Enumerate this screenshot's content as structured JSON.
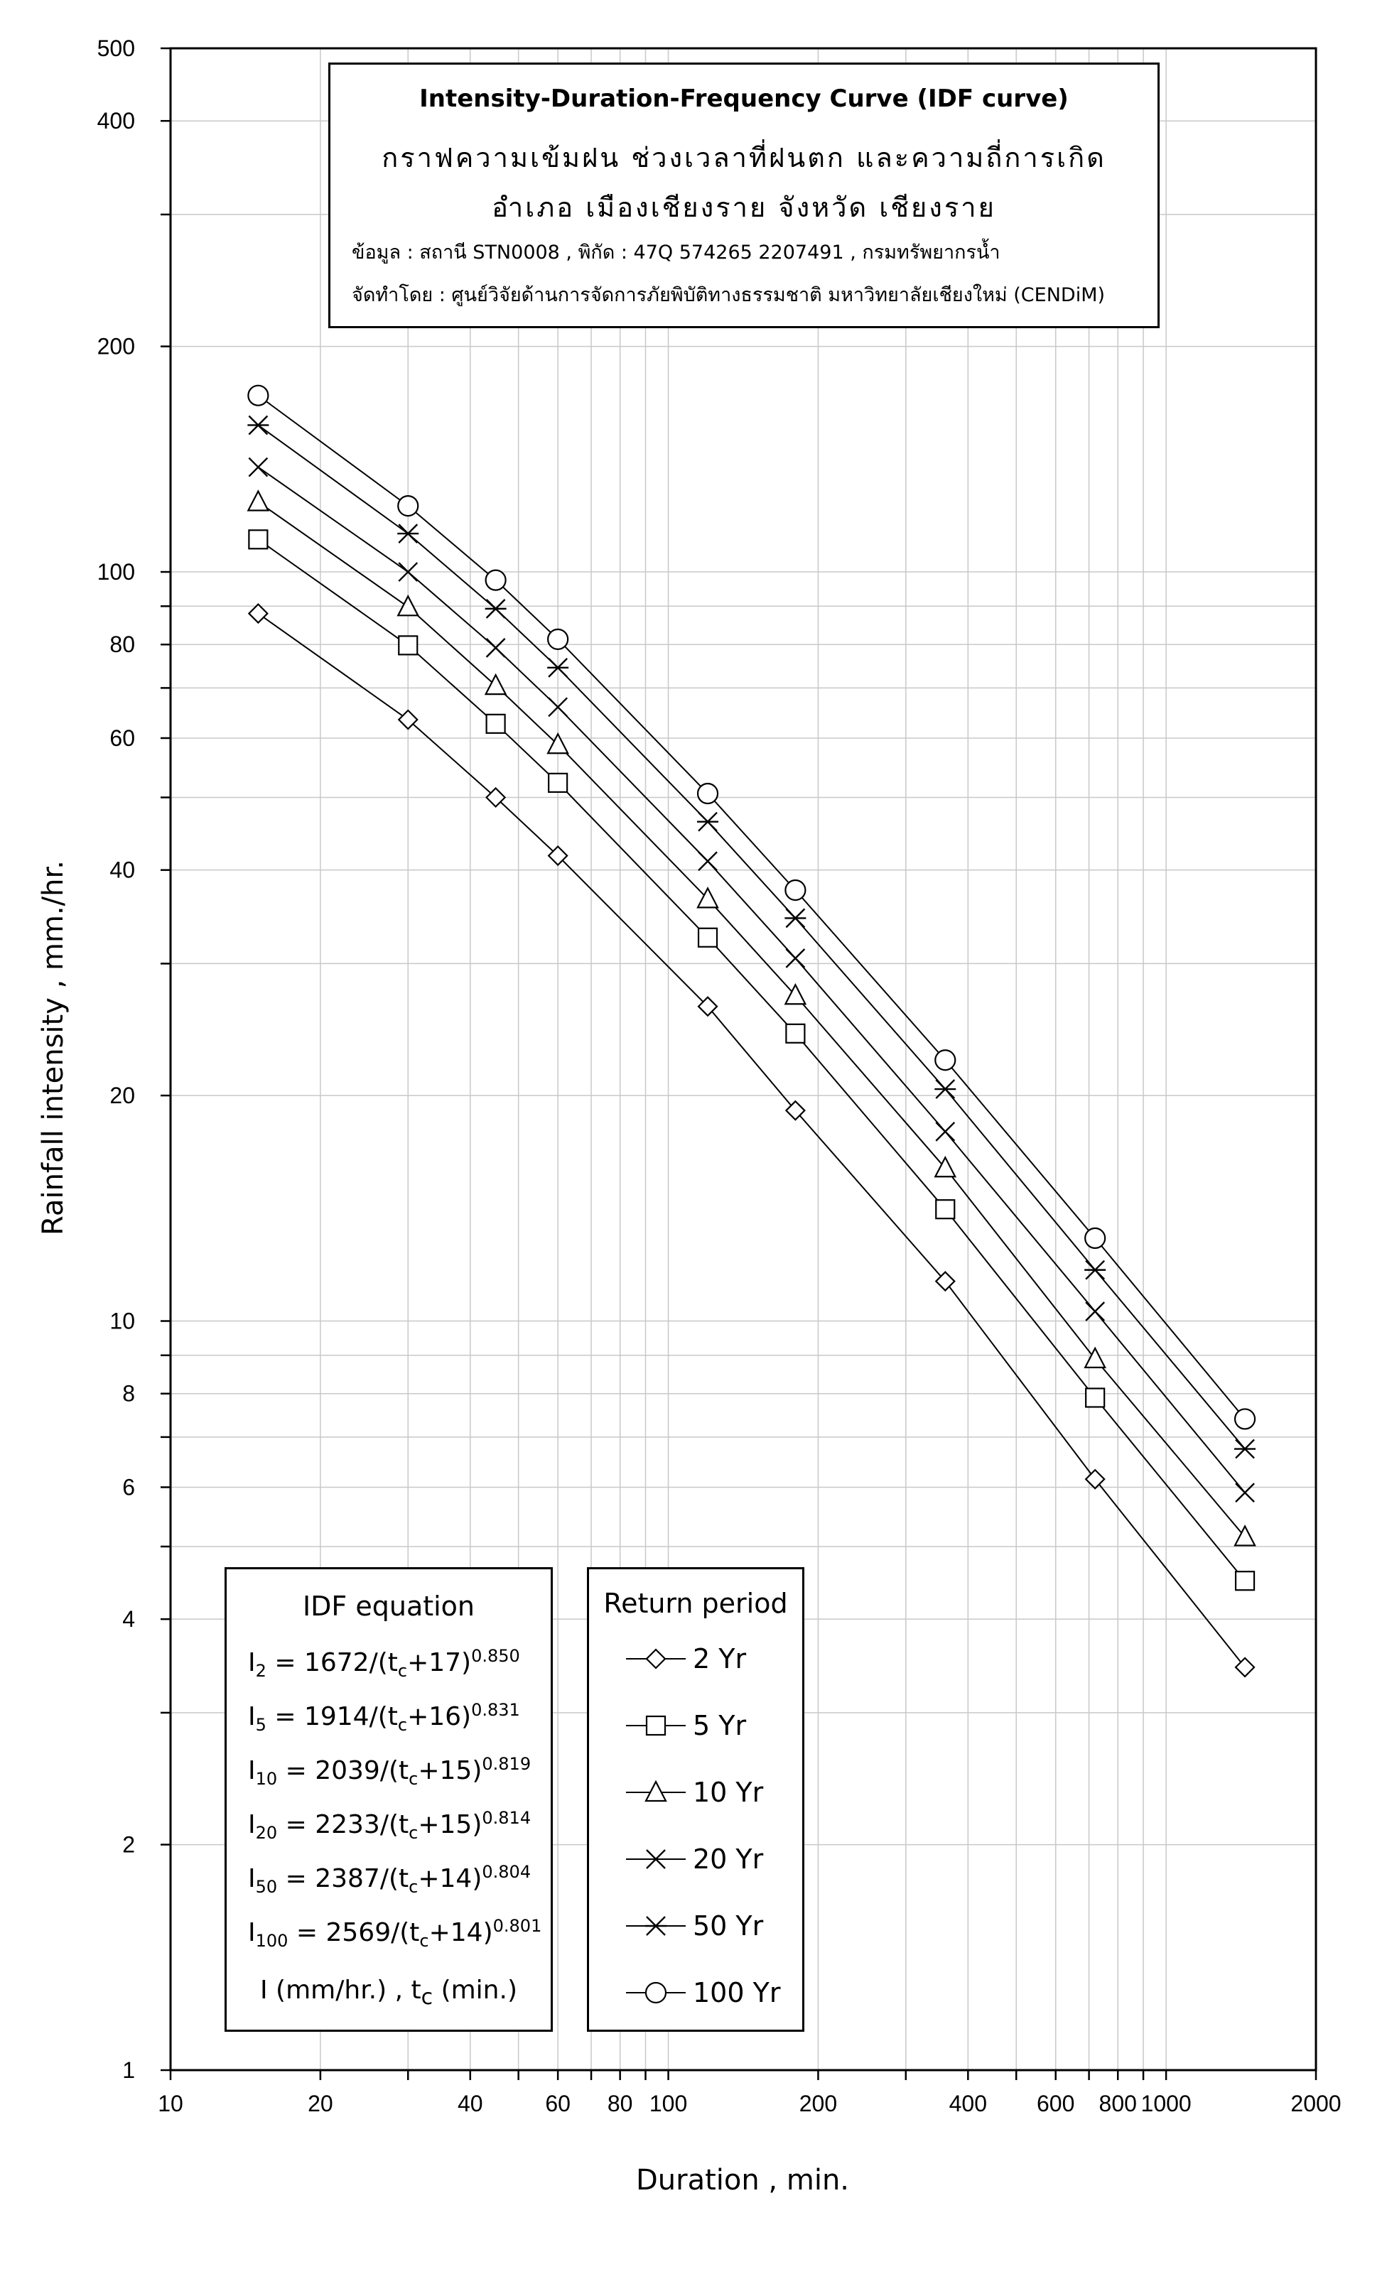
{
  "chart_data": {
    "type": "line",
    "x_scale": "log",
    "y_scale": "log",
    "xlim": [
      10,
      2000
    ],
    "ylim": [
      1,
      500
    ],
    "xlabel": "Duration , min.",
    "ylabel": "Rainfall intensity , mm./hr.",
    "x_tick_labels": [
      {
        "value": 10,
        "label": "10"
      },
      {
        "value": 20,
        "label": "20"
      },
      {
        "value": 40,
        "label": "40"
      },
      {
        "value": 60,
        "label": "60"
      },
      {
        "value": 80,
        "label": "80"
      },
      {
        "value": 100,
        "label": "100"
      },
      {
        "value": 200,
        "label": "200"
      },
      {
        "value": 400,
        "label": "400"
      },
      {
        "value": 600,
        "label": "600"
      },
      {
        "value": 800,
        "label": "800"
      },
      {
        "value": 1000,
        "label": "1000"
      },
      {
        "value": 2000,
        "label": "2000"
      }
    ],
    "y_tick_labels": [
      {
        "value": 1,
        "label": "1"
      },
      {
        "value": 2,
        "label": "2"
      },
      {
        "value": 4,
        "label": "4"
      },
      {
        "value": 6,
        "label": "6"
      },
      {
        "value": 8,
        "label": "8"
      },
      {
        "value": 10,
        "label": "10"
      },
      {
        "value": 20,
        "label": "20"
      },
      {
        "value": 40,
        "label": "40"
      },
      {
        "value": 60,
        "label": "60"
      },
      {
        "value": 80,
        "label": "80"
      },
      {
        "value": 100,
        "label": "100"
      },
      {
        "value": 200,
        "label": "200"
      },
      {
        "value": 400,
        "label": "400"
      },
      {
        "value": 500,
        "label": "500"
      }
    ],
    "grid": true,
    "x": [
      15,
      30,
      45,
      60,
      120,
      180,
      360,
      720,
      1440
    ],
    "series": [
      {
        "name": "2 Yr",
        "marker": "diamond",
        "values": [
          88.0,
          63.5,
          50.0,
          41.8,
          26.3,
          19.1,
          11.3,
          6.15,
          3.45
        ]
      },
      {
        "name": "5 Yr",
        "marker": "square",
        "values": [
          110.5,
          79.8,
          62.7,
          52.3,
          32.5,
          24.2,
          14.1,
          7.9,
          4.5
        ]
      },
      {
        "name": "10 Yr",
        "marker": "triangle",
        "values": [
          124.0,
          89.8,
          70.5,
          58.8,
          36.6,
          27.2,
          16.0,
          8.9,
          5.15
        ]
      },
      {
        "name": "20 Yr",
        "marker": "x",
        "values": [
          138.0,
          100.0,
          79.2,
          66.0,
          41.1,
          30.5,
          17.9,
          10.3,
          5.9
        ]
      },
      {
        "name": "50 Yr",
        "marker": "asterisk",
        "values": [
          157.0,
          112.5,
          89.3,
          74.5,
          46.4,
          34.5,
          20.4,
          11.7,
          6.75
        ]
      },
      {
        "name": "100 Yr",
        "marker": "circle",
        "values": [
          172.0,
          122.5,
          97.5,
          81.3,
          50.6,
          37.6,
          22.3,
          12.9,
          7.4
        ]
      }
    ]
  },
  "title_box": {
    "title": "Intensity-Duration-Frequency Curve (IDF curve)",
    "subtitle_th": "กราฟความเข้มฝน ช่วงเวลาที่ฝนตก และความถี่การเกิด",
    "location_th": "อำเภอ เมืองเชียงราย จังหวัด เชียงราย",
    "source": "ข้อมูล : สถานี STN0008 , พิกัด : 47Q 574265 2207491 , กรมทรัพยากรน้ำ",
    "producer": "จัดทำโดย : ศูนย์วิจัยด้านการจัดการภัยพิบัติทางธรรมชาติ มหาวิทยาลัยเชียงใหม่ (CENDiM)"
  },
  "equation_box": {
    "header": "IDF equation",
    "equations": [
      {
        "sub": "2",
        "coef": "1672",
        "add": "17",
        "exp": "0.850"
      },
      {
        "sub": "5",
        "coef": "1914",
        "add": "16",
        "exp": "0.831"
      },
      {
        "sub": "10",
        "coef": "2039",
        "add": "15",
        "exp": "0.819"
      },
      {
        "sub": "20",
        "coef": "2233",
        "add": "15",
        "exp": "0.814"
      },
      {
        "sub": "50",
        "coef": "2387",
        "add": "14",
        "exp": "0.804"
      },
      {
        "sub": "100",
        "coef": "2569",
        "add": "14",
        "exp": "0.801"
      }
    ],
    "note_prefix": "I (mm/hr.) , t",
    "note_sub": "c",
    "note_suffix": " (min.)"
  },
  "legend": {
    "title": "Return period"
  }
}
